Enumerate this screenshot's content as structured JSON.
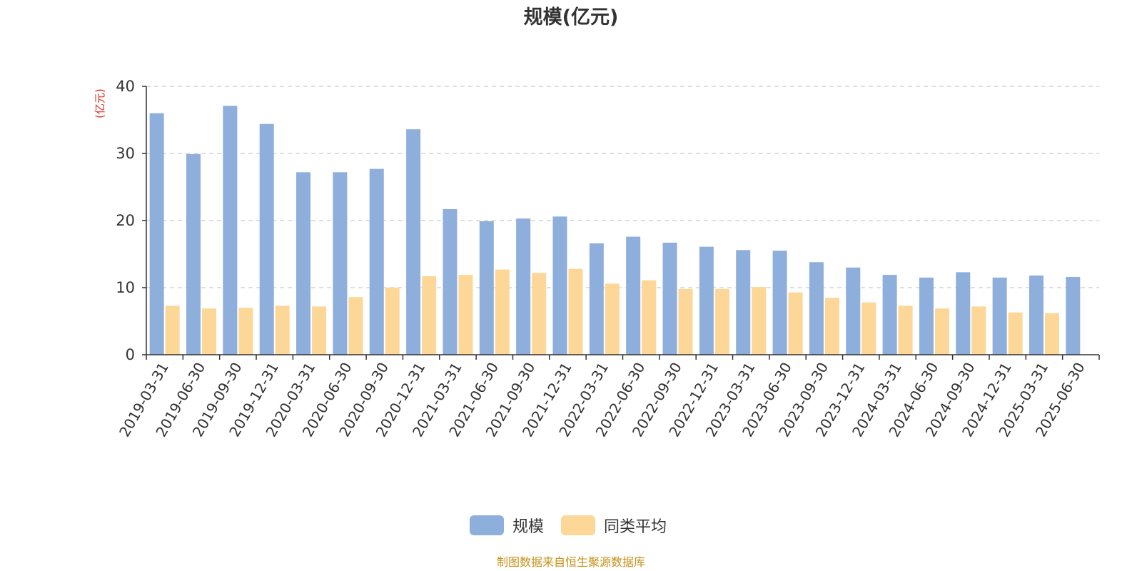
{
  "chart_data": {
    "type": "bar",
    "title": "规模(亿元)",
    "ylabel": "(亿元)",
    "xlabel": "",
    "ylim": [
      0,
      40
    ],
    "yticks": [
      0,
      10,
      20,
      30,
      40
    ],
    "grid": true,
    "legend_position": "bottom",
    "categories": [
      "2019-03-31",
      "2019-06-30",
      "2019-09-30",
      "2019-12-31",
      "2020-03-31",
      "2020-06-30",
      "2020-09-30",
      "2020-12-31",
      "2021-03-31",
      "2021-06-30",
      "2021-09-30",
      "2021-12-31",
      "2022-03-31",
      "2022-06-30",
      "2022-09-30",
      "2022-12-31",
      "2023-03-31",
      "2023-06-30",
      "2023-09-30",
      "2023-12-31",
      "2024-03-31",
      "2024-06-30",
      "2024-09-30",
      "2024-12-31",
      "2025-03-31",
      "2025-06-30"
    ],
    "series": [
      {
        "name": "规模",
        "color": "#8eaedb",
        "values": [
          36.0,
          29.9,
          37.1,
          34.4,
          27.2,
          27.2,
          27.7,
          33.6,
          21.7,
          19.9,
          20.3,
          20.6,
          16.6,
          17.6,
          16.7,
          16.1,
          15.6,
          15.5,
          13.8,
          13.0,
          11.9,
          11.5,
          12.3,
          11.5,
          11.8,
          11.6
        ]
      },
      {
        "name": "同类平均",
        "color": "#fdd797",
        "values": [
          7.3,
          6.9,
          7.0,
          7.3,
          7.2,
          8.6,
          10.0,
          11.7,
          11.9,
          12.7,
          12.2,
          12.8,
          10.6,
          11.1,
          9.8,
          9.8,
          10.1,
          9.3,
          8.5,
          7.8,
          7.3,
          6.9,
          7.2,
          6.3,
          6.2,
          null
        ]
      }
    ]
  },
  "footer": "制图数据来自恒生聚源数据库"
}
